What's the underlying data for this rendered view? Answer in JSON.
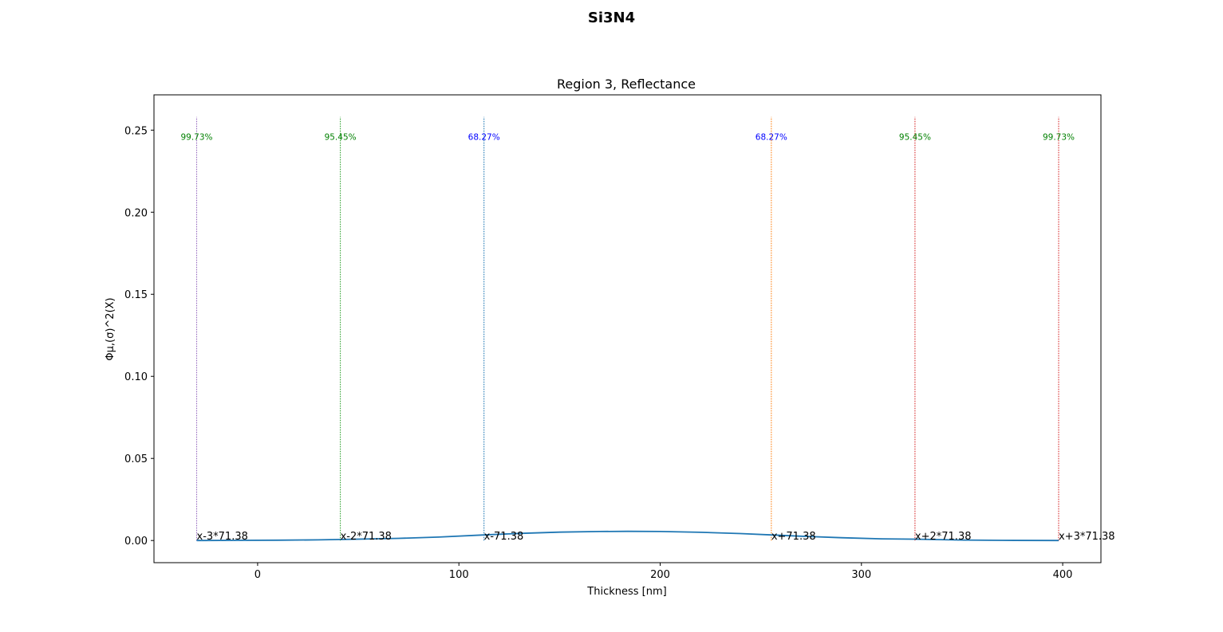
{
  "figure_title": "Si3N4",
  "chart_data": {
    "type": "line",
    "title": "Region 3, Reflectance",
    "xlabel": "Thickness [nm]",
    "ylabel": "Φμ,(σ)^2(X)",
    "xlim": [
      -51.5,
      419
    ],
    "ylim": [
      -0.0135,
      0.2715
    ],
    "xticks": [
      0,
      100,
      200,
      300,
      400
    ],
    "xtick_labels": [
      "0",
      "100",
      "200",
      "300",
      "400"
    ],
    "yticks": [
      0.0,
      0.05,
      0.1,
      0.15,
      0.2,
      0.25
    ],
    "ytick_labels": [
      "0.00",
      "0.05",
      "0.10",
      "0.15",
      "0.20",
      "0.25"
    ],
    "grid": false,
    "distribution": {
      "mean": 183.85,
      "sigma": 71.38
    },
    "series": [
      {
        "color": "#1f77b4",
        "x": [
          -30.3,
          -10,
          10,
          30,
          50,
          70,
          90,
          112.5,
          130,
          150,
          170,
          183.85,
          200,
          220,
          240,
          255.2,
          270,
          290,
          310,
          326.6,
          350,
          370,
          398.0
        ],
        "y": [
          0.0,
          0.0001,
          0.0002,
          0.0004,
          0.0008,
          0.0013,
          0.0021,
          0.0034,
          0.0043,
          0.0051,
          0.0055,
          0.0056,
          0.0055,
          0.005,
          0.0042,
          0.0034,
          0.0026,
          0.0017,
          0.001,
          0.0008,
          0.0003,
          0.0001,
          0.0
        ]
      }
    ],
    "vlines": [
      {
        "x": -30.29,
        "label": "x-3*71.38",
        "pct": "99.73%",
        "color": "#9467bd",
        "pct_color": "#008000"
      },
      {
        "x": 41.09,
        "label": "x-2*71.38",
        "pct": "95.45%",
        "color": "#2ca02c",
        "pct_color": "#008000"
      },
      {
        "x": 112.47,
        "label": "x-71.38",
        "pct": "68.27%",
        "color": "#1f77b4",
        "pct_color": "#0000ff"
      },
      {
        "x": 255.23,
        "label": "x+71.38",
        "pct": "68.27%",
        "color": "#ff7f0e",
        "pct_color": "#0000ff"
      },
      {
        "x": 326.61,
        "label": "x+2*71.38",
        "pct": "95.45%",
        "color": "#d62728",
        "pct_color": "#008000"
      },
      {
        "x": 397.99,
        "label": "x+3*71.38",
        "pct": "99.73%",
        "color": "#d62728",
        "pct_color": "#008000"
      }
    ],
    "vline_ymax": 0.258,
    "pct_label_y": 0.244
  }
}
